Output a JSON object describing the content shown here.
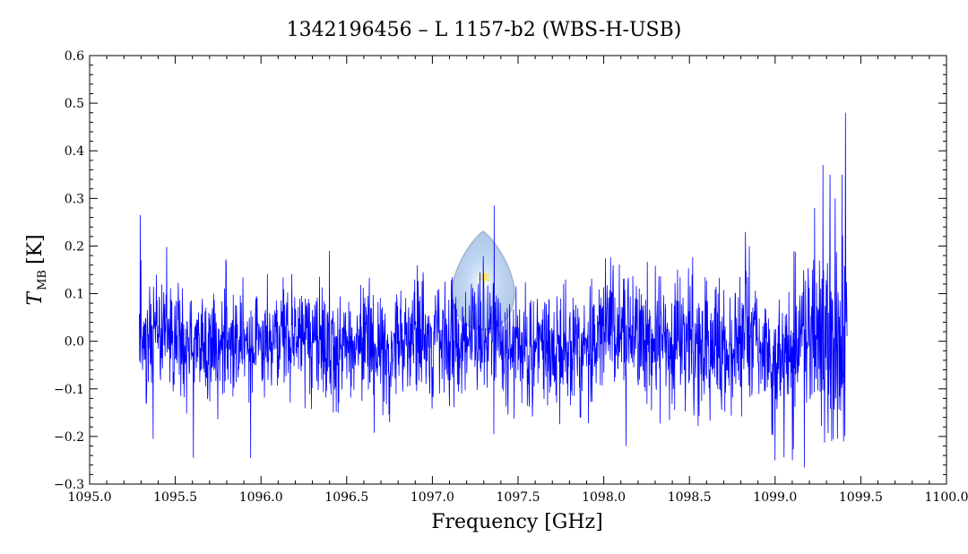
{
  "colors": {
    "series": "#0000ff",
    "axes": "#000000",
    "logo_tint": "#6f9fd8"
  },
  "chart_data": {
    "type": "line",
    "title": "1342196456 – L 1157-b2 (WBS-H-USB)",
    "xlabel": "Frequency [GHz]",
    "ylabel_main": "T",
    "ylabel_sub": "MB",
    "ylabel_unit": "[K]",
    "xlim": [
      1095.0,
      1100.0
    ],
    "ylim": [
      -0.3,
      0.6
    ],
    "xticks": [
      1095.0,
      1095.5,
      1096.0,
      1096.5,
      1097.0,
      1097.5,
      1098.0,
      1098.5,
      1099.0,
      1099.5,
      1100.0
    ],
    "xtick_labels": [
      "1095.0",
      "1095.5",
      "1096.0",
      "1096.5",
      "1097.0",
      "1097.5",
      "1098.0",
      "1098.5",
      "1099.0",
      "1099.5",
      "1100.0"
    ],
    "yticks": [
      -0.3,
      -0.2,
      -0.1,
      0.0,
      0.1,
      0.2,
      0.3,
      0.4,
      0.5,
      0.6
    ],
    "ytick_labels": [
      "−0.3",
      "−0.2",
      "−0.1",
      "0.0",
      "0.1",
      "0.2",
      "0.3",
      "0.4",
      "0.5",
      "0.6"
    ],
    "grid": false,
    "series": [
      {
        "x_start": 1095.29,
        "x_end": 1099.42,
        "noise_rms_start": 0.055,
        "noise_rms_end": 0.07,
        "features": [
          {
            "x": 1095.295,
            "y": 0.265
          },
          {
            "x": 1095.3,
            "y": 0.17
          },
          {
            "x": 1095.33,
            "y": -0.13
          },
          {
            "x": 1095.37,
            "y": -0.205
          },
          {
            "x": 1095.605,
            "y": -0.245
          },
          {
            "x": 1095.94,
            "y": -0.245
          },
          {
            "x": 1096.4,
            "y": 0.19
          },
          {
            "x": 1096.75,
            "y": -0.17
          },
          {
            "x": 1097.36,
            "y": 0.285
          },
          {
            "x": 1097.38,
            "y": -0.02
          },
          {
            "x": 1098.13,
            "y": -0.22
          },
          {
            "x": 1098.85,
            "y": 0.2
          },
          {
            "x": 1099.0,
            "y": -0.25
          },
          {
            "x": 1099.1,
            "y": -0.25
          },
          {
            "x": 1099.17,
            "y": -0.265
          },
          {
            "x": 1099.23,
            "y": 0.28
          },
          {
            "x": 1099.28,
            "y": 0.37
          },
          {
            "x": 1099.32,
            "y": 0.35
          },
          {
            "x": 1099.35,
            "y": 0.3
          },
          {
            "x": 1099.39,
            "y": 0.35
          },
          {
            "x": 1099.4,
            "y": -0.21
          },
          {
            "x": 1099.41,
            "y": 0.48
          },
          {
            "x": 1099.415,
            "y": 0.04
          }
        ]
      }
    ]
  }
}
